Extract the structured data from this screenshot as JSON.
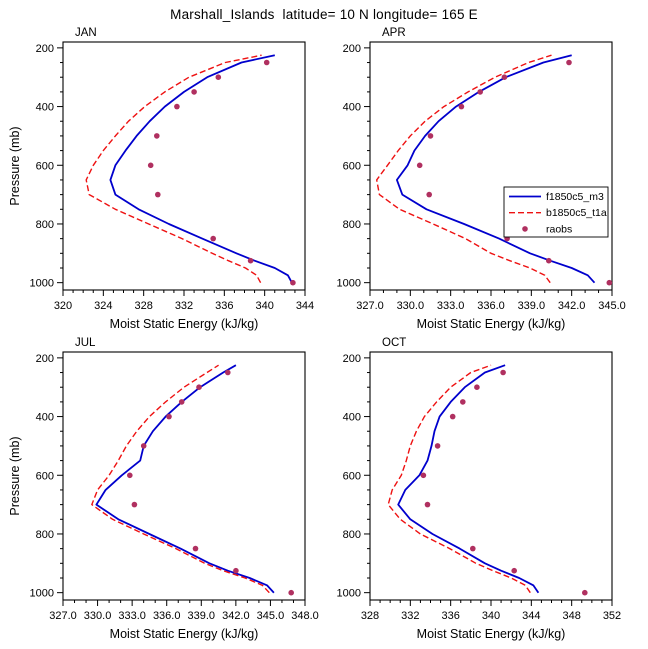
{
  "title": "Marshall_Islands  latitude= 10 N longitude= 165 E",
  "axes": {
    "xlabel": "Moist Static Energy (kJ/kg)",
    "ylabel": "Pressure (mb)",
    "yticks": [
      200,
      400,
      600,
      800,
      1000
    ],
    "ytick_labels": [
      "200",
      "400",
      "600",
      "800",
      "1000"
    ],
    "pressure_range": [
      180,
      1025
    ],
    "grid": false
  },
  "legend": {
    "position": "inside APR panel, middle-right",
    "entries": [
      {
        "label": "f1850c5_m3",
        "style": "solid",
        "color": "#0000cd"
      },
      {
        "label": "b1850c5_t1a",
        "style": "dashed",
        "color": "#ee1111"
      },
      {
        "label": "raobs",
        "style": "dots",
        "color": "#b03060"
      }
    ]
  },
  "chart_data": [
    {
      "type": "line",
      "title": "JAN",
      "panel": "JAN",
      "xlabel": "Moist Static Energy (kJ/kg)",
      "ylabel": "Pressure (mb)",
      "xlim": [
        320,
        344
      ],
      "xtick_values": [
        320,
        324,
        328,
        332,
        336,
        340,
        344
      ],
      "xticks": [
        "320",
        "324",
        "328",
        "332",
        "336",
        "340",
        "344"
      ],
      "series": [
        {
          "name": "f1850c5_m3",
          "style": "solid",
          "color": "#0000cd",
          "points": [
            [
              1000,
              342.7
            ],
            [
              975,
              342.3
            ],
            [
              950,
              341.0
            ],
            [
              925,
              339.0
            ],
            [
              900,
              337.2
            ],
            [
              850,
              333.8
            ],
            [
              800,
              330.5
            ],
            [
              750,
              327.5
            ],
            [
              700,
              325.2
            ],
            [
              650,
              324.7
            ],
            [
              600,
              325.2
            ],
            [
              550,
              326.2
            ],
            [
              500,
              327.3
            ],
            [
              450,
              328.6
            ],
            [
              400,
              330.1
            ],
            [
              350,
              332.0
            ],
            [
              300,
              334.3
            ],
            [
              250,
              337.7
            ],
            [
              225,
              341.0
            ]
          ]
        },
        {
          "name": "b1850c5_t1a",
          "style": "dashed",
          "color": "#ee1111",
          "points": [
            [
              1000,
              339.6
            ],
            [
              975,
              339.2
            ],
            [
              950,
              338.1
            ],
            [
              925,
              336.4
            ],
            [
              900,
              334.8
            ],
            [
              850,
              331.8
            ],
            [
              800,
              328.5
            ],
            [
              750,
              325.2
            ],
            [
              700,
              322.6
            ],
            [
              650,
              322.3
            ],
            [
              600,
              323.0
            ],
            [
              550,
              324.0
            ],
            [
              500,
              325.2
            ],
            [
              450,
              326.5
            ],
            [
              400,
              328.1
            ],
            [
              350,
              330.1
            ],
            [
              300,
              332.5
            ],
            [
              250,
              336.1
            ],
            [
              225,
              339.7
            ]
          ]
        },
        {
          "name": "raobs",
          "style": "dots",
          "color": "#b03060",
          "points": [
            [
              1000,
              342.8
            ],
            [
              925,
              338.6
            ],
            [
              850,
              334.9
            ],
            [
              700,
              329.4
            ],
            [
              600,
              328.7
            ],
            [
              500,
              329.3
            ],
            [
              400,
              331.3
            ],
            [
              350,
              333.0
            ],
            [
              300,
              335.4
            ],
            [
              250,
              340.2
            ]
          ]
        }
      ]
    },
    {
      "type": "line",
      "title": "APR",
      "panel": "APR",
      "xlabel": "Moist Static Energy (kJ/kg)",
      "ylabel": "Pressure (mb)",
      "xlim": [
        327,
        345
      ],
      "xtick_values": [
        327,
        330,
        333,
        336,
        339,
        342,
        345
      ],
      "xticks": [
        "327.0",
        "330.0",
        "333.0",
        "336.0",
        "339.0",
        "342.0",
        "345.0"
      ],
      "series": [
        {
          "name": "f1850c5_m3",
          "style": "solid",
          "color": "#0000cd",
          "points": [
            [
              1000,
              343.7
            ],
            [
              975,
              343.2
            ],
            [
              950,
              342.0
            ],
            [
              925,
              340.4
            ],
            [
              900,
              338.9
            ],
            [
              850,
              336.6
            ],
            [
              800,
              334.0
            ],
            [
              750,
              331.2
            ],
            [
              700,
              329.4
            ],
            [
              650,
              329.0
            ],
            [
              600,
              329.8
            ],
            [
              550,
              330.3
            ],
            [
              500,
              331.1
            ],
            [
              450,
              332.1
            ],
            [
              400,
              333.4
            ],
            [
              350,
              335.1
            ],
            [
              300,
              337.1
            ],
            [
              250,
              339.9
            ],
            [
              225,
              342.0
            ]
          ]
        },
        {
          "name": "b1850c5_t1a",
          "style": "dashed",
          "color": "#ee1111",
          "points": [
            [
              1000,
              340.4
            ],
            [
              975,
              340.0
            ],
            [
              950,
              338.9
            ],
            [
              925,
              337.4
            ],
            [
              900,
              336.0
            ],
            [
              850,
              334.1
            ],
            [
              800,
              331.7
            ],
            [
              750,
              329.2
            ],
            [
              700,
              327.7
            ],
            [
              650,
              327.5
            ],
            [
              600,
              328.3
            ],
            [
              550,
              329.1
            ],
            [
              500,
              330.0
            ],
            [
              450,
              331.1
            ],
            [
              400,
              332.5
            ],
            [
              350,
              334.3
            ],
            [
              300,
              336.3
            ],
            [
              250,
              338.8
            ],
            [
              225,
              340.5
            ]
          ]
        },
        {
          "name": "raobs",
          "style": "dots",
          "color": "#b03060",
          "points": [
            [
              1000,
              344.8
            ],
            [
              925,
              340.3
            ],
            [
              850,
              337.2
            ],
            [
              700,
              331.4
            ],
            [
              600,
              330.7
            ],
            [
              500,
              331.5
            ],
            [
              400,
              333.8
            ],
            [
              350,
              335.2
            ],
            [
              300,
              337.0
            ],
            [
              250,
              341.8
            ]
          ]
        }
      ]
    },
    {
      "type": "line",
      "title": "JUL",
      "panel": "JUL",
      "xlabel": "Moist Static Energy (kJ/kg)",
      "ylabel": "Pressure (mb)",
      "xlim": [
        327,
        348
      ],
      "xtick_values": [
        327,
        330,
        333,
        336,
        339,
        342,
        345,
        348
      ],
      "xticks": [
        "327.0",
        "330.0",
        "333.0",
        "336.0",
        "339.0",
        "342.0",
        "345.0",
        "348.0"
      ],
      "series": [
        {
          "name": "f1850c5_m3",
          "style": "solid",
          "color": "#0000cd",
          "points": [
            [
              1000,
              345.3
            ],
            [
              975,
              344.7
            ],
            [
              950,
              343.2
            ],
            [
              925,
              341.3
            ],
            [
              900,
              339.7
            ],
            [
              850,
              337.2
            ],
            [
              800,
              334.5
            ],
            [
              750,
              331.8
            ],
            [
              700,
              329.9
            ],
            [
              650,
              330.7
            ],
            [
              600,
              332.1
            ],
            [
              550,
              333.7
            ],
            [
              500,
              334.0
            ],
            [
              450,
              334.8
            ],
            [
              400,
              335.9
            ],
            [
              350,
              337.3
            ],
            [
              300,
              338.9
            ],
            [
              250,
              340.9
            ],
            [
              225,
              342.0
            ]
          ]
        },
        {
          "name": "b1850c5_t1a",
          "style": "dashed",
          "color": "#ee1111",
          "points": [
            [
              1000,
              344.9
            ],
            [
              975,
              344.3
            ],
            [
              950,
              342.8
            ],
            [
              925,
              340.9
            ],
            [
              900,
              339.3
            ],
            [
              850,
              336.8
            ],
            [
              800,
              334.0
            ],
            [
              750,
              331.3
            ],
            [
              700,
              329.5
            ],
            [
              650,
              330.0
            ],
            [
              600,
              331.0
            ],
            [
              550,
              331.8
            ],
            [
              500,
              332.5
            ],
            [
              450,
              333.4
            ],
            [
              400,
              334.5
            ],
            [
              350,
              335.9
            ],
            [
              300,
              337.5
            ],
            [
              250,
              339.5
            ],
            [
              225,
              340.5
            ]
          ]
        },
        {
          "name": "raobs",
          "style": "dots",
          "color": "#b03060",
          "points": [
            [
              1000,
              346.8
            ],
            [
              925,
              342.0
            ],
            [
              850,
              338.5
            ],
            [
              700,
              333.2
            ],
            [
              600,
              332.8
            ],
            [
              500,
              334.0
            ],
            [
              400,
              336.2
            ],
            [
              350,
              337.3
            ],
            [
              300,
              338.8
            ],
            [
              250,
              341.3
            ]
          ]
        }
      ]
    },
    {
      "type": "line",
      "title": "OCT",
      "panel": "OCT",
      "xlabel": "Moist Static Energy (kJ/kg)",
      "ylabel": "Pressure (mb)",
      "xlim": [
        328,
        352
      ],
      "xtick_values": [
        328,
        332,
        336,
        340,
        344,
        348,
        352
      ],
      "xticks": [
        "328",
        "332",
        "336",
        "340",
        "344",
        "348",
        "352"
      ],
      "series": [
        {
          "name": "f1850c5_m3",
          "style": "solid",
          "color": "#0000cd",
          "points": [
            [
              1000,
              344.7
            ],
            [
              975,
              344.2
            ],
            [
              950,
              342.8
            ],
            [
              925,
              341.0
            ],
            [
              900,
              339.4
            ],
            [
              850,
              336.9
            ],
            [
              800,
              334.2
            ],
            [
              750,
              332.0
            ],
            [
              700,
              330.8
            ],
            [
              650,
              331.5
            ],
            [
              600,
              332.9
            ],
            [
              550,
              333.7
            ],
            [
              500,
              334.1
            ],
            [
              450,
              334.4
            ],
            [
              400,
              334.9
            ],
            [
              350,
              336.0
            ],
            [
              300,
              337.4
            ],
            [
              250,
              339.4
            ],
            [
              225,
              341.4
            ]
          ]
        },
        {
          "name": "b1850c5_t1a",
          "style": "dashed",
          "color": "#ee1111",
          "points": [
            [
              1000,
              343.9
            ],
            [
              975,
              343.4
            ],
            [
              950,
              342.0
            ],
            [
              925,
              340.2
            ],
            [
              900,
              338.5
            ],
            [
              850,
              335.9
            ],
            [
              800,
              333.0
            ],
            [
              750,
              331.0
            ],
            [
              700,
              329.8
            ],
            [
              650,
              330.2
            ],
            [
              600,
              331.1
            ],
            [
              550,
              331.6
            ],
            [
              500,
              332.0
            ],
            [
              450,
              332.6
            ],
            [
              400,
              333.4
            ],
            [
              350,
              334.6
            ],
            [
              300,
              336.0
            ],
            [
              250,
              338.0
            ],
            [
              225,
              340.0
            ]
          ]
        },
        {
          "name": "raobs",
          "style": "dots",
          "color": "#b03060",
          "points": [
            [
              1000,
              349.3
            ],
            [
              925,
              342.3
            ],
            [
              850,
              338.2
            ],
            [
              700,
              333.7
            ],
            [
              600,
              333.3
            ],
            [
              500,
              334.7
            ],
            [
              400,
              336.2
            ],
            [
              350,
              337.2
            ],
            [
              300,
              338.6
            ],
            [
              250,
              341.2
            ]
          ]
        }
      ]
    }
  ]
}
